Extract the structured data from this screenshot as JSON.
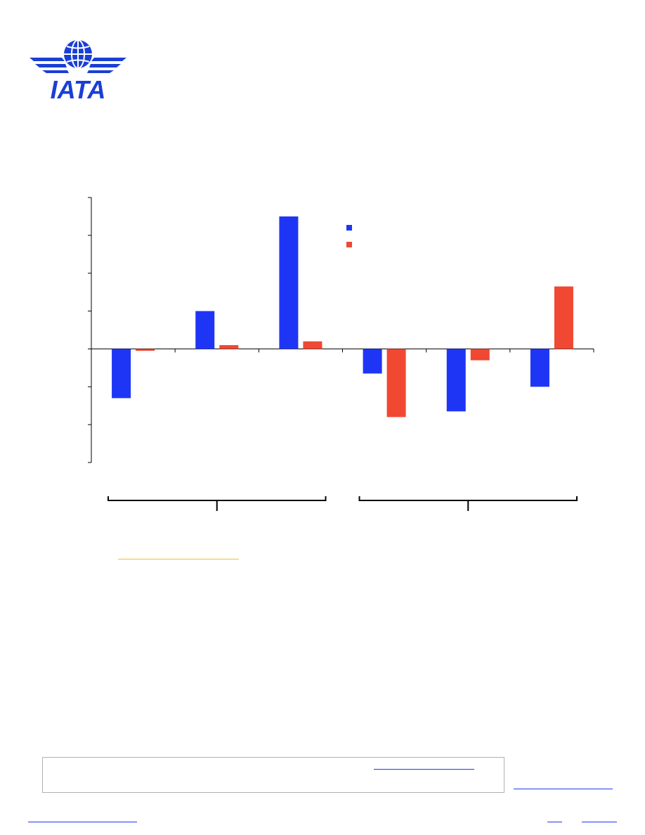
{
  "brand": {
    "logo_text": "IATA",
    "logo_color": "#1a3fd4"
  },
  "chart_data": {
    "type": "bar",
    "categories": [
      "",
      "",
      "",
      "",
      "",
      ""
    ],
    "groups": [
      "",
      ""
    ],
    "series": [
      {
        "color": "#1f35f5",
        "values": [
          -1.3,
          1.0,
          3.5,
          -0.65,
          -1.65,
          -1.0
        ]
      },
      {
        "color": "#f04832",
        "values": [
          -0.05,
          0.1,
          0.2,
          -1.8,
          -0.3,
          1.65
        ]
      }
    ],
    "ylim": [
      -3.0,
      4.0
    ],
    "legend_position": "top-center",
    "grid": false
  },
  "links": {
    "colors": {
      "gold": "#e8c030",
      "blue": "#1f35f5"
    }
  }
}
